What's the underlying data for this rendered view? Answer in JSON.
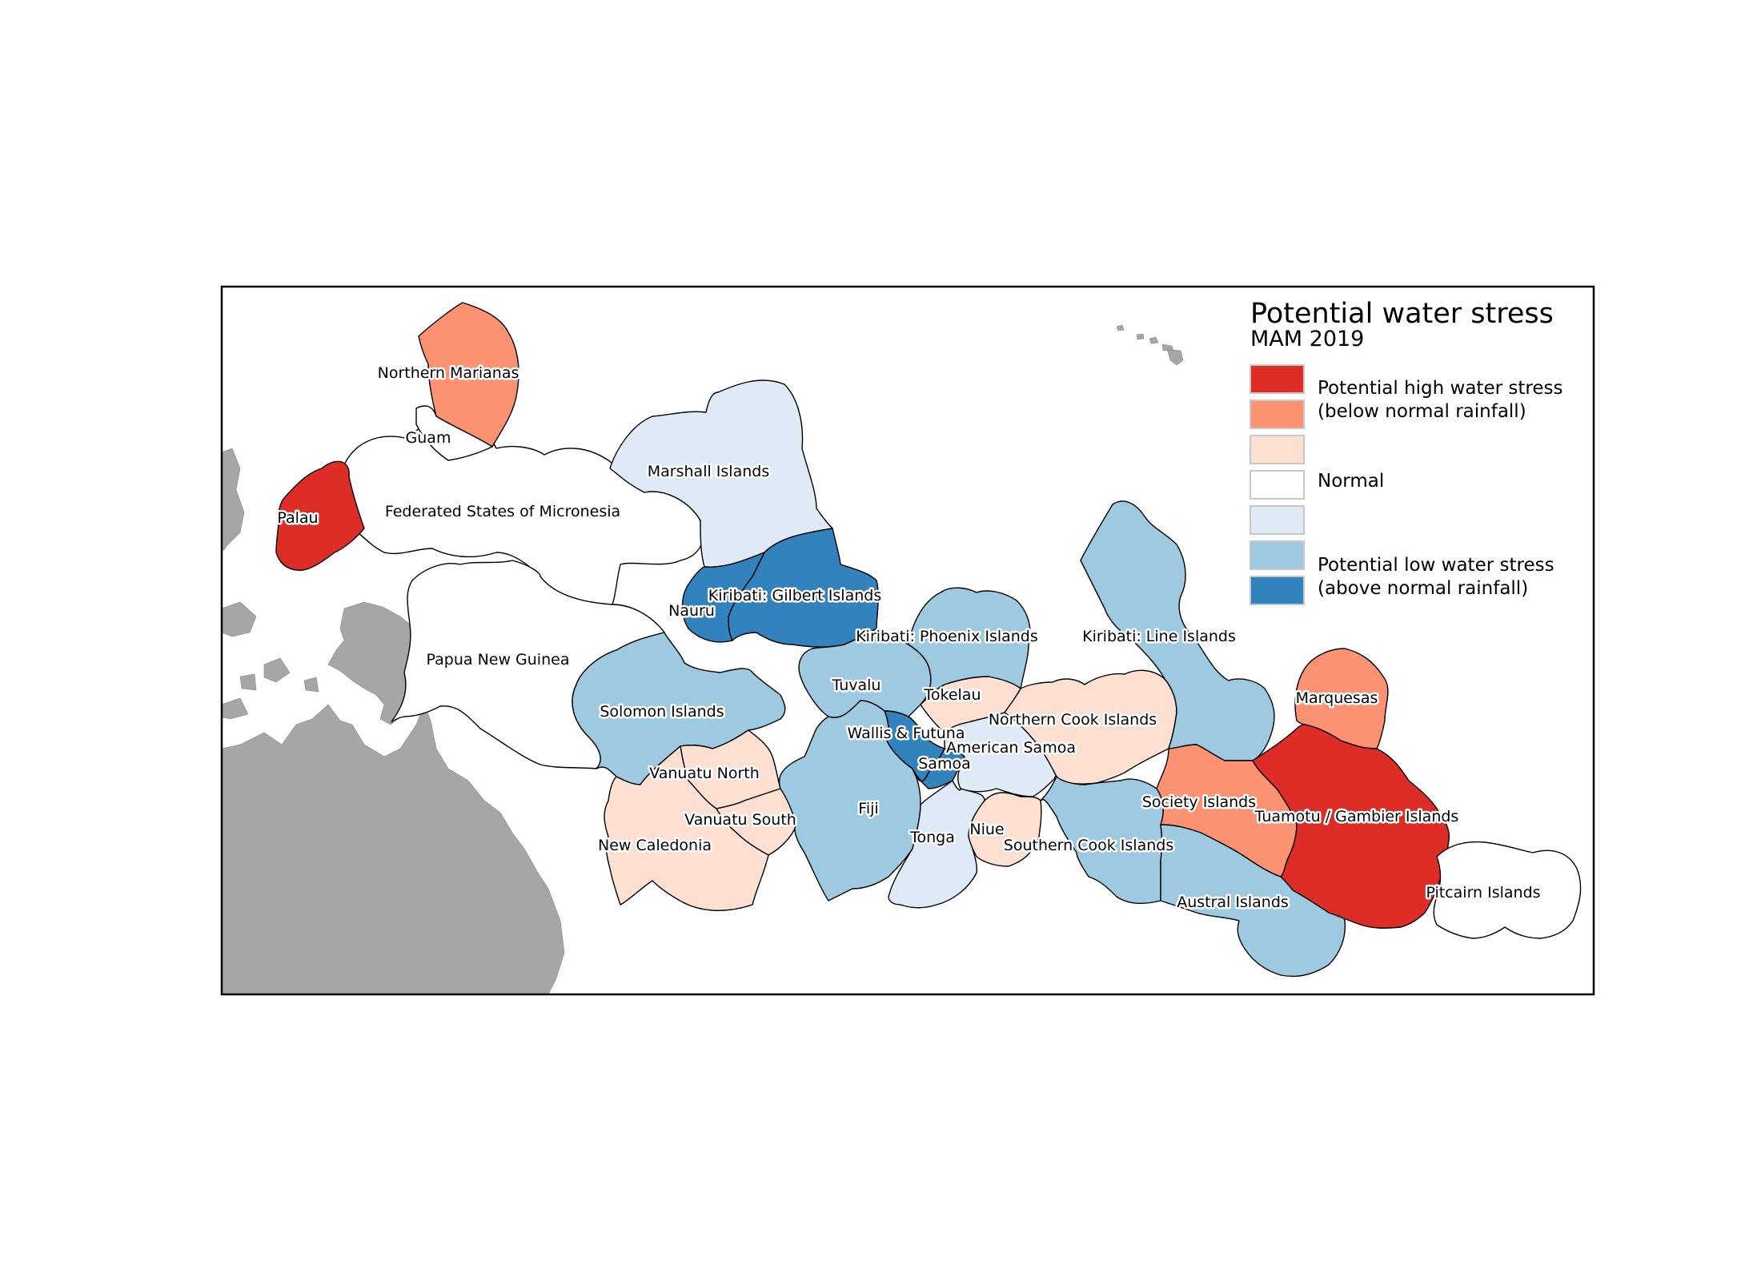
{
  "legend": {
    "title": "Potential water stress",
    "subtitle": "MAM 2019",
    "items": [
      {
        "color": "#de2d26",
        "text": "Potential high water stress"
      },
      {
        "color": "#fc9272",
        "text": "(below normal rainfall)"
      },
      {
        "color": "#fee0d2",
        "text": ""
      },
      {
        "color": "#ffffff",
        "text": "Normal"
      },
      {
        "color": "#deebf7",
        "text": ""
      },
      {
        "color": "#9ecae1",
        "text": "Potential low water stress"
      },
      {
        "color": "#3182bd",
        "text": "(above normal rainfall)"
      }
    ]
  },
  "regions": [
    {
      "id": "northern-marianas",
      "name": "Northern Marianas",
      "category": "(below normal rainfall)",
      "color": "#fc9272"
    },
    {
      "id": "guam",
      "name": "Guam",
      "category": "Normal",
      "color": "#ffffff"
    },
    {
      "id": "palau",
      "name": "Palau",
      "category": "Potential high water stress",
      "color": "#de2d26"
    },
    {
      "id": "fsm",
      "name": "Federated States of Micronesia",
      "category": "Normal",
      "color": "#ffffff"
    },
    {
      "id": "marshall-islands",
      "name": "Marshall Islands",
      "category": "light blue",
      "color": "#deebf7"
    },
    {
      "id": "nauru",
      "name": "Nauru",
      "category": "(above normal rainfall)",
      "color": "#3182bd"
    },
    {
      "id": "kiribati-gilbert",
      "name": "Kiribati: Gilbert Islands",
      "category": "(above normal rainfall)",
      "color": "#3182bd"
    },
    {
      "id": "papua-new-guinea",
      "name": "Papua New Guinea",
      "category": "Normal",
      "color": "#ffffff"
    },
    {
      "id": "solomon-islands",
      "name": "Solomon Islands",
      "category": "Potential low water stress",
      "color": "#9ecae1"
    },
    {
      "id": "vanuatu-north",
      "name": "Vanuatu North",
      "category": "light red",
      "color": "#fee0d2"
    },
    {
      "id": "vanuatu-south",
      "name": "Vanuatu South",
      "category": "light red",
      "color": "#fee0d2"
    },
    {
      "id": "new-caledonia",
      "name": "New Caledonia",
      "category": "light red",
      "color": "#fee0d2"
    },
    {
      "id": "tuvalu",
      "name": "Tuvalu",
      "category": "Potential low water stress",
      "color": "#9ecae1"
    },
    {
      "id": "fiji",
      "name": "Fiji",
      "category": "Potential low water stress",
      "color": "#9ecae1"
    },
    {
      "id": "wallis-futuna",
      "name": "Wallis & Futuna",
      "category": "(above normal rainfall)",
      "color": "#3182bd"
    },
    {
      "id": "samoa",
      "name": "Samoa",
      "category": "(above normal rainfall)",
      "color": "#3182bd"
    },
    {
      "id": "tokelau",
      "name": "Tokelau",
      "category": "light red",
      "color": "#fee0d2"
    },
    {
      "id": "american-samoa",
      "name": "American Samoa",
      "category": "light blue",
      "color": "#deebf7"
    },
    {
      "id": "tonga",
      "name": "Tonga",
      "category": "light blue",
      "color": "#deebf7"
    },
    {
      "id": "niue",
      "name": "Niue",
      "category": "light red",
      "color": "#fee0d2"
    },
    {
      "id": "kiribati-phoenix",
      "name": "Kiribati: Phoenix Islands",
      "category": "Potential low water stress",
      "color": "#9ecae1"
    },
    {
      "id": "northern-cook-islands",
      "name": "Northern Cook Islands",
      "category": "light red",
      "color": "#fee0d2"
    },
    {
      "id": "southern-cook-islands",
      "name": "Southern Cook Islands",
      "category": "Potential low water stress",
      "color": "#9ecae1"
    },
    {
      "id": "kiribati-line",
      "name": "Kiribati: Line Islands",
      "category": "Potential low water stress",
      "color": "#9ecae1"
    },
    {
      "id": "society-islands",
      "name": "Society Islands",
      "category": "(below normal rainfall)",
      "color": "#fc9272"
    },
    {
      "id": "austral-islands",
      "name": "Austral Islands",
      "category": "Potential low water stress",
      "color": "#9ecae1"
    },
    {
      "id": "marquesas",
      "name": "Marquesas",
      "category": "(below normal rainfall)",
      "color": "#fc9272"
    },
    {
      "id": "tuamotu-gambier",
      "name": "Tuamotu / Gambier Islands",
      "category": "Potential high water stress",
      "color": "#de2d26"
    },
    {
      "id": "pitcairn-islands",
      "name": "Pitcairn Islands",
      "category": "Normal",
      "color": "#ffffff"
    }
  ]
}
